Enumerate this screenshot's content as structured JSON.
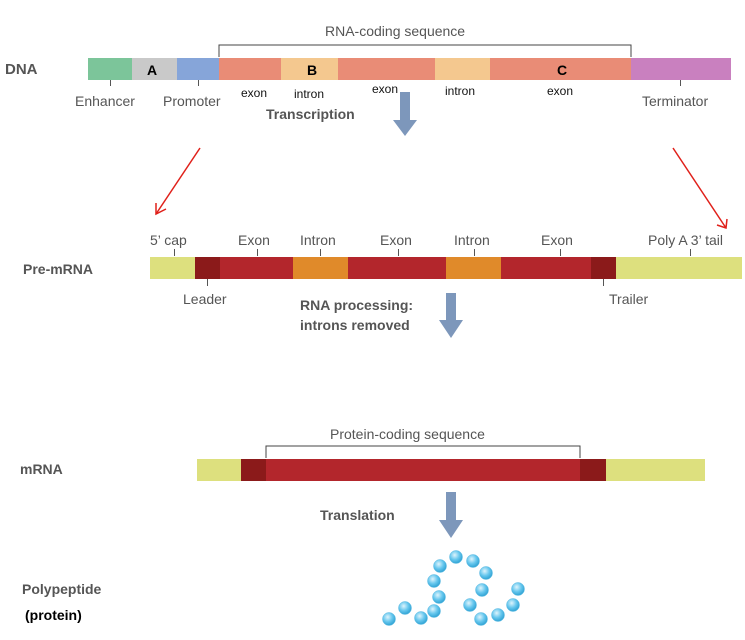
{
  "dna": {
    "row_label": "DNA",
    "header": "RNA-coding sequence",
    "labels": {
      "enhancer": "Enhancer",
      "promoter": "Promoter",
      "terminator": "Terminator",
      "exon1": "exon",
      "intron1": "intron",
      "exon2": "exon",
      "intron2": "intron",
      "exon3": "exon"
    },
    "letters": {
      "a": "A",
      "b": "B",
      "c": "C"
    }
  },
  "step1": "Transcription",
  "premrna": {
    "row_label": "Pre-mRNA",
    "top": {
      "cap": "5’ cap",
      "exon1": "Exon",
      "intron1": "Intron",
      "exon2": "Exon",
      "intron2": "Intron",
      "exon3": "Exon",
      "tail": "Poly A 3’ tail"
    },
    "bottom": {
      "leader": "Leader",
      "trailer": "Trailer"
    }
  },
  "step2_line1": "RNA processing:",
  "step2_line2": "introns removed",
  "mrna": {
    "row_label": "mRNA",
    "header": "Protein-coding sequence"
  },
  "step3": "Translation",
  "polypeptide": {
    "label": "Polypeptide",
    "sub": "(protein)"
  },
  "colors": {
    "enhancer": "#7cc59a",
    "a_region": "#c9c9c9",
    "promoter": "#86a5d9",
    "exon": "#e98c76",
    "intron": "#f4c88f",
    "terminator": "#c980bf",
    "cap_tail": "#dde07e",
    "leader_trailer": "#8b1a1a",
    "rna_exon": "#b3262c",
    "rna_intron": "#e08a2a",
    "arrow": "#7d97bb",
    "red_arrow": "#e0201a",
    "bead": "#66c7ee"
  }
}
